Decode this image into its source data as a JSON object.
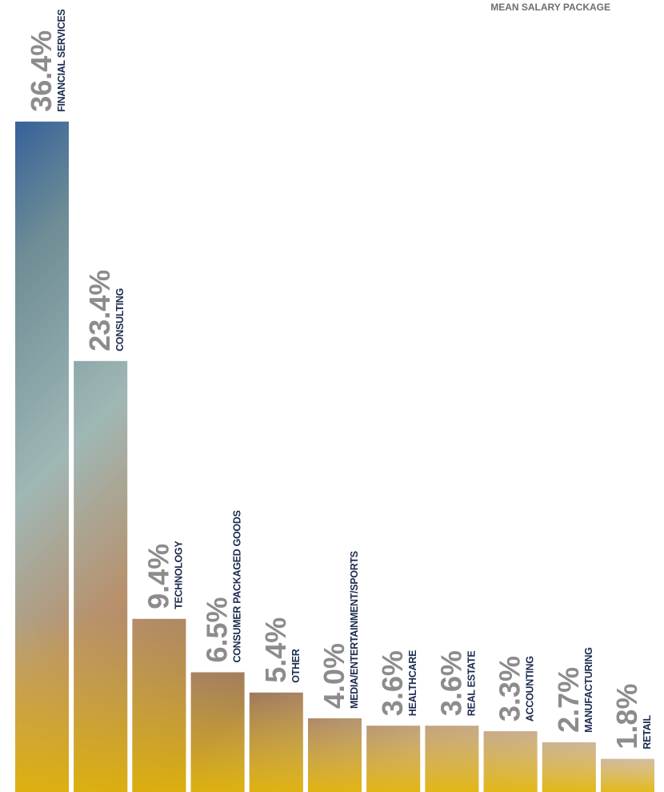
{
  "chart_data": {
    "type": "bar",
    "annotation": "MEAN SALARY PACKAGE",
    "categories": [
      "FINANCIAL SERVICES",
      "CONSULTING",
      "TECHNOLOGY",
      "CONSUMER PACKAGED GOODS",
      "OTHER",
      "MEDIA/ENTERTAINMENT/SPORTS",
      "HEALTHCARE",
      "REAL ESTATE",
      "ACCOUNTING",
      "MANUFACTURING",
      "RETAIL"
    ],
    "values": [
      36.4,
      23.4,
      9.4,
      6.5,
      5.4,
      4.0,
      3.6,
      3.6,
      3.3,
      2.7,
      1.8
    ],
    "value_labels": [
      "36.4%",
      "23.4%",
      "9.4%",
      "6.5%",
      "5.4%",
      "4.0%",
      "3.6%",
      "3.6%",
      "3.3%",
      "2.7%",
      "1.8%"
    ],
    "ylim": [
      0,
      40
    ]
  }
}
